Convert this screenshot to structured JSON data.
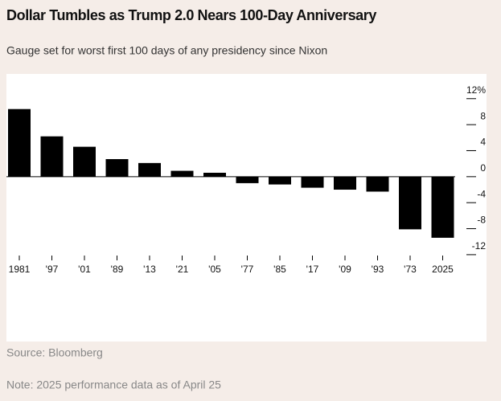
{
  "chart_data": {
    "type": "bar",
    "title": "Dollar Tumbles as Trump 2.0 Nears 100-Day Anniversary",
    "subtitle": "Gauge set for worst first 100 days of any presidency since Nixon",
    "categories": [
      "1981",
      "'97",
      "'01",
      "'89",
      "'13",
      "'21",
      "'05",
      "'77",
      "'85",
      "'17",
      "'09",
      "'93",
      "'73",
      "2025"
    ],
    "values": [
      10.4,
      6.2,
      4.6,
      2.7,
      2.1,
      0.9,
      0.6,
      -1.0,
      -1.2,
      -1.7,
      -2.0,
      -2.3,
      -8.1,
      -9.4
    ],
    "color": "#000000",
    "ylim": [
      -13,
      15
    ],
    "yticks": [
      {
        "value": 12,
        "label": "12%"
      },
      8,
      4,
      0,
      -4,
      -8,
      -12
    ],
    "source": "Source: Bloomberg",
    "note": "Note: 2025 performance data as of April 25"
  }
}
